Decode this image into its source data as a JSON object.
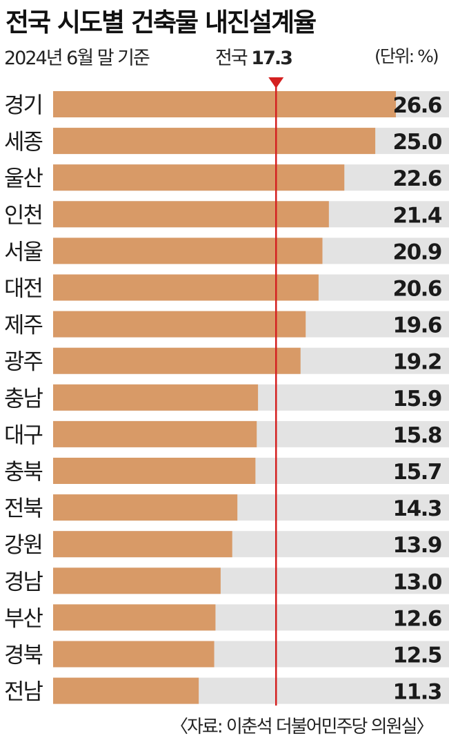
{
  "title": "전국 시도별 건축물 내진설계율",
  "subtitle": "2024년 6월 말 기준",
  "unit": "(단위: %)",
  "source": "〈자료: 이춘석 더불어민주당 의원실〉",
  "colors": {
    "bar": "#d89a67",
    "track": "#e3e3e3",
    "reference": "#d42020"
  },
  "chart_data": {
    "type": "bar",
    "orientation": "horizontal",
    "title": "전국 시도별 건축물 내진설계율",
    "categories": [
      "경기",
      "세종",
      "울산",
      "인천",
      "서울",
      "대전",
      "제주",
      "광주",
      "충남",
      "대구",
      "충북",
      "전북",
      "강원",
      "경남",
      "부산",
      "경북",
      "전남"
    ],
    "values": [
      26.6,
      25.0,
      22.6,
      21.4,
      20.9,
      20.6,
      19.6,
      19.2,
      15.9,
      15.8,
      15.7,
      14.3,
      13.9,
      13.0,
      12.6,
      12.5,
      11.3
    ],
    "value_labels": [
      "26.6",
      "25.0",
      "22.6",
      "21.4",
      "20.9",
      "20.6",
      "19.6",
      "19.2",
      "15.9",
      "15.8",
      "15.7",
      "14.3",
      "13.9",
      "13.0",
      "12.6",
      "12.5",
      "11.3"
    ],
    "xlim": [
      0,
      30.4
    ],
    "reference": {
      "label": "전국",
      "value": 17.3,
      "value_label": "17.3"
    },
    "grid": false
  }
}
